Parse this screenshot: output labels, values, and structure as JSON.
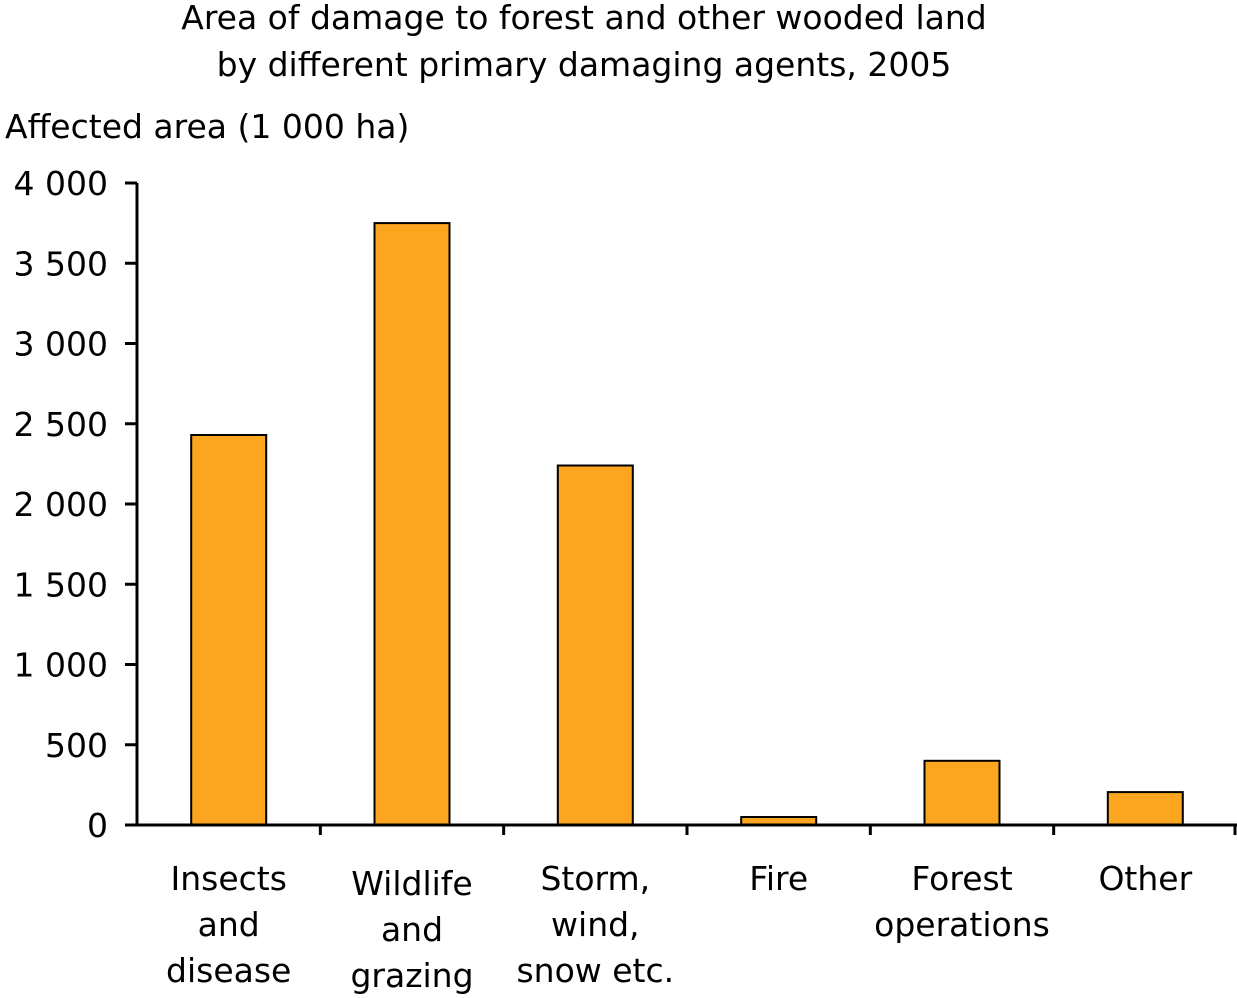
{
  "chart_data": {
    "type": "bar",
    "title_lines": [
      "Area of damage to forest and other wooded land",
      "by different primary damaging agents, 2005"
    ],
    "ylabel": "Affected area (1 000 ha)",
    "xlabel": "",
    "categories": [
      [
        "Insects",
        "and",
        "disease"
      ],
      [
        "Wildlife",
        "and",
        "grazing"
      ],
      [
        "Storm,",
        "wind,",
        "snow etc."
      ],
      [
        "Fire"
      ],
      [
        "Forest",
        "operations"
      ],
      [
        "Other"
      ]
    ],
    "values": [
      2430,
      3750,
      2240,
      50,
      400,
      205
    ],
    "ylim": [
      0,
      4000
    ],
    "yticks": [
      0,
      500,
      1000,
      1500,
      2000,
      2500,
      3000,
      3500,
      4000
    ],
    "ytick_labels": [
      "0",
      "500",
      "1 000",
      "1 500",
      "2 000",
      "2 500",
      "3 000",
      "3 500",
      "4 000"
    ],
    "bar_color": "#FBA61E",
    "bar_edge_color": "#000000",
    "grid": false,
    "legend": "none"
  }
}
